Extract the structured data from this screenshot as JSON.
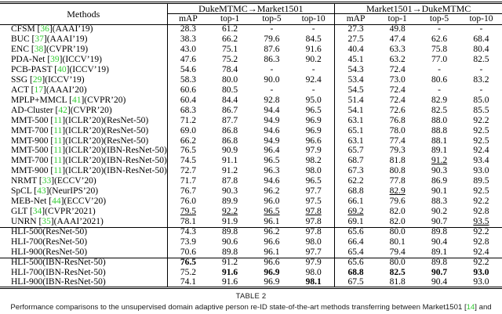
{
  "table": {
    "methods_header": "Methods",
    "groups": [
      "DukeMTMC→Market1501",
      "Market1501→DukeMTMC"
    ],
    "sub_headers": [
      "mAP",
      "top-1",
      "top-5",
      "top-10"
    ],
    "rows": [
      {
        "m_pre": "CFSM [",
        "cite": "36",
        "m_post": "](AAAI’19)",
        "vals": [
          "28.3",
          "61.2",
          "-",
          "-",
          "27.3",
          "49.8",
          "-",
          "-"
        ],
        "bold": [],
        "ul": [],
        "rule": false
      },
      {
        "m_pre": "BUC [",
        "cite": "37",
        "m_post": "](AAAI’19)",
        "vals": [
          "38.3",
          "66.2",
          "79.6",
          "84.5",
          "27.5",
          "47.4",
          "62.6",
          "68.4"
        ],
        "bold": [],
        "ul": [],
        "rule": false
      },
      {
        "m_pre": "ENC [",
        "cite": "38",
        "m_post": "](CVPR’19)",
        "vals": [
          "43.0",
          "75.1",
          "87.6",
          "91.6",
          "40.4",
          "63.3",
          "75.8",
          "80.4"
        ],
        "bold": [],
        "ul": [],
        "rule": false
      },
      {
        "m_pre": "PDA-Net [",
        "cite": "39",
        "m_post": "](ICCV’19)",
        "vals": [
          "47.6",
          "75.2",
          "86.3",
          "90.2",
          "45.1",
          "63.2",
          "77.0",
          "82.5"
        ],
        "bold": [],
        "ul": [],
        "rule": false
      },
      {
        "m_pre": "PCB-PAST [",
        "cite": "40",
        "m_post": "](ICCV’19)",
        "vals": [
          "54.6",
          "78.4",
          "-",
          "-",
          "54.3",
          "72.4",
          "-",
          "-"
        ],
        "bold": [],
        "ul": [],
        "rule": false
      },
      {
        "m_pre": "SSG [",
        "cite": "29",
        "m_post": "](ICCV’19)",
        "vals": [
          "58.3",
          "80.0",
          "90.0",
          "92.4",
          "53.4",
          "73.0",
          "80.6",
          "83.2"
        ],
        "bold": [],
        "ul": [],
        "rule": false
      },
      {
        "m_pre": "ACT [",
        "cite": "17",
        "m_post": "](AAAI’20)",
        "vals": [
          "60.6",
          "80.5",
          "-",
          "-",
          "54.5",
          "72.4",
          "-",
          "-"
        ],
        "bold": [],
        "ul": [],
        "rule": false
      },
      {
        "m_pre": "MPLP+MMCL [",
        "cite": "41",
        "m_post": "](CVPR’20)",
        "vals": [
          "60.4",
          "84.4",
          "92.8",
          "95.0",
          "51.4",
          "72.4",
          "82.9",
          "85.0"
        ],
        "bold": [],
        "ul": [],
        "rule": false
      },
      {
        "m_pre": "AD-Cluster [",
        "cite": "42",
        "m_post": "](CVPR’20)",
        "vals": [
          "68.3",
          "86.7",
          "94.4",
          "96.5",
          "54.1",
          "72.6",
          "82.5",
          "85.5"
        ],
        "bold": [],
        "ul": [],
        "rule": false
      },
      {
        "m_pre": "MMT-500 [",
        "cite": "11",
        "m_post": "](ICLR’20)(ResNet-50)",
        "vals": [
          "71.2",
          "87.7",
          "94.9",
          "96.9",
          "63.1",
          "76.8",
          "88.0",
          "92.2"
        ],
        "bold": [],
        "ul": [],
        "rule": false
      },
      {
        "m_pre": "MMT-700 [",
        "cite": "11",
        "m_post": "](ICLR’20)(ResNet-50)",
        "vals": [
          "69.0",
          "86.8",
          "94.6",
          "96.9",
          "65.1",
          "78.0",
          "88.8",
          "92.5"
        ],
        "bold": [],
        "ul": [],
        "rule": false
      },
      {
        "m_pre": "MMT-900 [",
        "cite": "11",
        "m_post": "](ICLR’20)(ResNet-50)",
        "vals": [
          "66.2",
          "86.8",
          "94.9",
          "96.6",
          "63.1",
          "77.4",
          "88.1",
          "92.5"
        ],
        "bold": [],
        "ul": [],
        "rule": false
      },
      {
        "m_pre": "MMT-500 [",
        "cite": "11",
        "m_post": "](ICLR’20)(IBN-ResNet-50)",
        "vals": [
          "76.5",
          "90.9",
          "96.4",
          "97.9",
          "65.7",
          "79.3",
          "89.1",
          "92.4"
        ],
        "bold": [],
        "ul": [],
        "rule": false
      },
      {
        "m_pre": "MMT-700 [",
        "cite": "11",
        "m_post": "](ICLR’20)(IBN-ResNet-50)",
        "vals": [
          "74.5",
          "91.1",
          "96.5",
          "98.2",
          "68.7",
          "81.8",
          "91.2",
          "93.4"
        ],
        "bold": [],
        "ul": [
          6
        ],
        "rule": false
      },
      {
        "m_pre": "MMT-900 [",
        "cite": "11",
        "m_post": "](ICLR’20)(IBN-ResNet-50)",
        "vals": [
          "72.7",
          "91.2",
          "96.3",
          "98.0",
          "67.3",
          "80.8",
          "90.3",
          "93.0"
        ],
        "bold": [],
        "ul": [],
        "rule": false
      },
      {
        "m_pre": "NRMT [",
        "cite": "33",
        "m_post": "](ECCV’20)",
        "vals": [
          "71.7",
          "87.8",
          "94.6",
          "96.5",
          "62.2",
          "77.8",
          "86.9",
          "89.5"
        ],
        "bold": [],
        "ul": [],
        "rule": false
      },
      {
        "m_pre": "SpCL [",
        "cite": "43",
        "m_post": "](NeurIPS’20)",
        "vals": [
          "76.7",
          "90.3",
          "96.2",
          "97.7",
          "68.8",
          "82.9",
          "90.1",
          "92.5"
        ],
        "bold": [],
        "ul": [
          5
        ],
        "rule": false
      },
      {
        "m_pre": "MEB-Net [",
        "cite": "44",
        "m_post": "](ECCV’20)",
        "vals": [
          "76.0",
          "89.9",
          "96.0",
          "97.5",
          "66.1",
          "79.6",
          "88.3",
          "92.2"
        ],
        "bold": [],
        "ul": [],
        "rule": false
      },
      {
        "m_pre": "GLT [",
        "cite": "34",
        "m_post": "](CVPR’2021)",
        "vals": [
          "79.5",
          "92.2",
          "96.5",
          "97.8",
          "69.2",
          "82.0",
          "90.2",
          "92.8"
        ],
        "bold": [],
        "ul": [
          0,
          1,
          2,
          3,
          4
        ],
        "rule": false
      },
      {
        "m_pre": "UNRN [",
        "cite": "35",
        "m_post": "](AAAI’2021)",
        "vals": [
          "78.1",
          "91.9",
          "96.1",
          "97.8",
          "69.1",
          "82.0",
          "90.7",
          "93.5"
        ],
        "bold": [],
        "ul": [
          7
        ],
        "rule": false
      },
      {
        "m_pre": "HLI-500(ResNet-50)",
        "cite": "",
        "m_post": "",
        "vals": [
          "74.3",
          "89.8",
          "96.2",
          "97.8",
          "65.6",
          "80.0",
          "89.8",
          "92.2"
        ],
        "bold": [],
        "ul": [],
        "rule": true
      },
      {
        "m_pre": "HLI-700(ResNet-50)",
        "cite": "",
        "m_post": "",
        "vals": [
          "73.9",
          "90.6",
          "96.6",
          "98.0",
          "66.4",
          "80.1",
          "90.4",
          "92.8"
        ],
        "bold": [],
        "ul": [],
        "rule": false
      },
      {
        "m_pre": "HLI-900(ResNet-50)",
        "cite": "",
        "m_post": "",
        "vals": [
          "70.6",
          "89.8",
          "96.1",
          "97.7",
          "65.4",
          "79.4",
          "89.1",
          "92.4"
        ],
        "bold": [],
        "ul": [],
        "rule": false
      },
      {
        "m_pre": "HLI-500(IBN-ResNet-50)",
        "cite": "",
        "m_post": "",
        "vals": [
          "76.5",
          "91.2",
          "96.6",
          "97.9",
          "65.6",
          "80.0",
          "89.8",
          "92.2"
        ],
        "bold": [
          0
        ],
        "ul": [],
        "rule": true
      },
      {
        "m_pre": "HLI-700(IBN-ResNet-50)",
        "cite": "",
        "m_post": "",
        "vals": [
          "75.2",
          "91.6",
          "96.9",
          "98.0",
          "68.8",
          "82.5",
          "90.7",
          "93.0"
        ],
        "bold": [
          1,
          2,
          4,
          5,
          6,
          7
        ],
        "ul": [],
        "rule": false
      },
      {
        "m_pre": "HLI-900(IBN-ResNet-50)",
        "cite": "",
        "m_post": "",
        "vals": [
          "74.1",
          "91.6",
          "96.9",
          "98.1",
          "67.5",
          "81.8",
          "90.4",
          "93.0"
        ],
        "bold": [
          3
        ],
        "ul": [],
        "rule": false
      }
    ]
  },
  "caption": {
    "title": "TABLE 2",
    "pre": "Performance comparisons to the unsupervised domain adaptive person re-ID state-of-the-art methods transferring between Market1501 [",
    "cite": "14",
    "post": "] and"
  },
  "colors": {
    "cite_green": "#33cc33"
  }
}
